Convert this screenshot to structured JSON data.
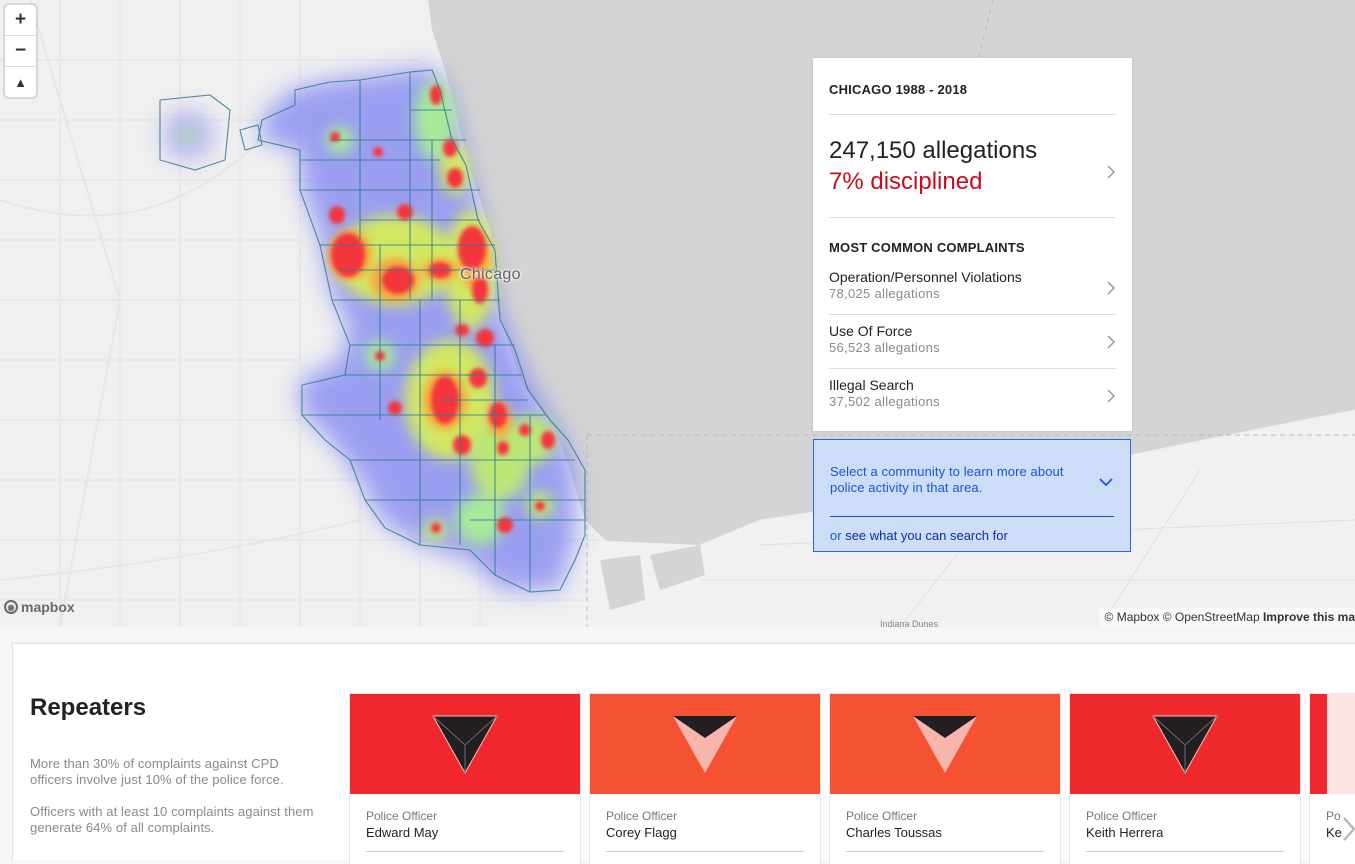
{
  "map": {
    "controls": {
      "zoom_in": "+",
      "zoom_out": "−",
      "compass": "▲"
    },
    "city_label": "Chicago",
    "road_label": "Indiana Dunes",
    "logo": "mapbox",
    "attribution": {
      "mapbox": "© Mapbox",
      "osm": "© OpenStreetMap",
      "improve": "Improve this ma"
    }
  },
  "panel": {
    "region": "CHICAGO 1988 - 2018",
    "allegations": "247,150 allegations",
    "disciplined": "7% disciplined",
    "common_title": "MOST COMMON COMPLAINTS",
    "complaints": [
      {
        "name": "Operation/Personnel Violations",
        "count": "78,025 allegations"
      },
      {
        "name": "Use Of Force",
        "count": "56,523 allegations"
      },
      {
        "name": "Illegal Search",
        "count": "37,502 allegations"
      }
    ]
  },
  "helper": {
    "message": "Select a community to learn more about police activity in that area.",
    "or_prefix": "or",
    "search_link": "see what you can search for"
  },
  "repeaters": {
    "title": "Repeaters",
    "para1": "More than 30% of complaints against CPD officers involve just 10% of the police force.",
    "para2": "Officers with at least 10 complaints against them generate 64% of all complaints.",
    "cards": [
      {
        "rank": "Police Officer",
        "name": "Edward May",
        "color": "#f0282d"
      },
      {
        "rank": "Police Officer",
        "name": "Corey Flagg",
        "color": "#f45233"
      },
      {
        "rank": "Police Officer",
        "name": "Charles Toussas",
        "color": "#f45233"
      },
      {
        "rank": "Police Officer",
        "name": "Keith Herrera",
        "color": "#ef2a2d"
      },
      {
        "rank": "Po",
        "name": "Ke",
        "color": "#f0282d"
      }
    ]
  }
}
